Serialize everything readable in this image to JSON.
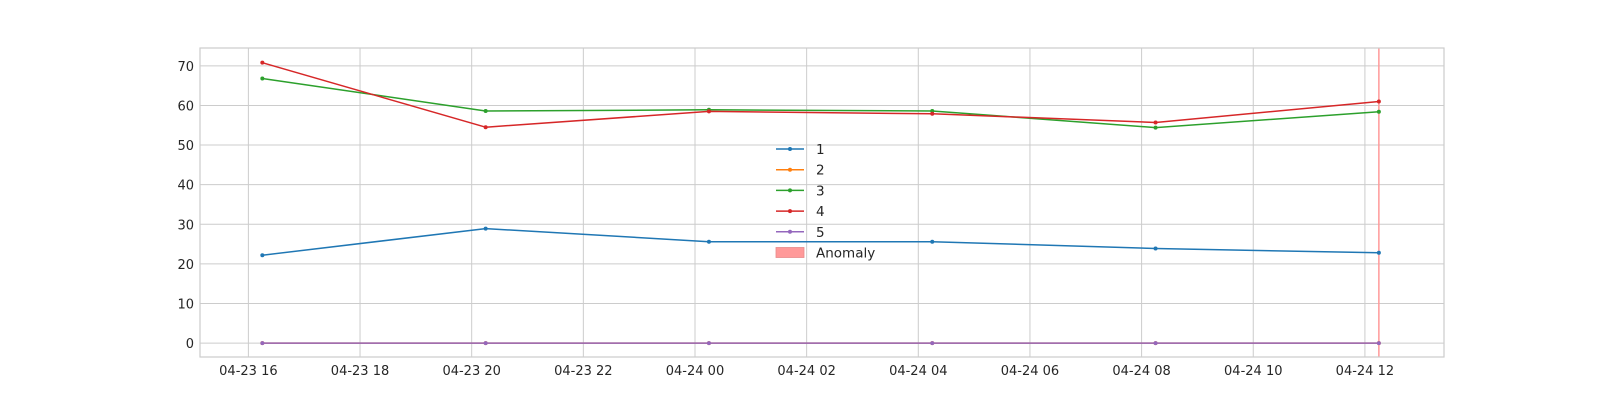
{
  "chart_data": {
    "type": "line",
    "title": "",
    "xlabel": "",
    "ylabel": "",
    "x": [
      "2023-04-23 16:15",
      "2023-04-23 20:15",
      "2023-04-24 00:15",
      "2023-04-24 04:15",
      "2023-04-24 08:15",
      "2023-04-24 12:15"
    ],
    "series": [
      {
        "name": "1",
        "color": "#1f77b4",
        "values": [
          22.2,
          28.9,
          25.6,
          25.6,
          23.9,
          22.8
        ]
      },
      {
        "name": "2",
        "color": "#ff7f0e",
        "values": [
          0,
          0,
          0,
          0,
          0,
          0
        ]
      },
      {
        "name": "3",
        "color": "#2ca02c",
        "values": [
          66.8,
          58.6,
          58.9,
          58.6,
          54.4,
          58.4
        ]
      },
      {
        "name": "4",
        "color": "#d62728",
        "values": [
          70.8,
          54.5,
          58.5,
          57.9,
          55.7,
          61.0
        ]
      },
      {
        "name": "5",
        "color": "#9467bd",
        "values": [
          0,
          0,
          0,
          0,
          0,
          0
        ]
      }
    ],
    "anomaly": {
      "label": "Anomaly",
      "color": "#ff9999",
      "at": "2023-04-24 12:15"
    },
    "ylim": [
      -3.5,
      74.5
    ],
    "xlim": [
      "2023-04-23 15:08",
      "2023-04-24 13:25"
    ],
    "yticks": [
      0,
      10,
      20,
      30,
      40,
      50,
      60,
      70
    ],
    "xticks": [
      {
        "t": "2023-04-23 16:00",
        "label": "04-23 16"
      },
      {
        "t": "2023-04-23 18:00",
        "label": "04-23 18"
      },
      {
        "t": "2023-04-23 20:00",
        "label": "04-23 20"
      },
      {
        "t": "2023-04-23 22:00",
        "label": "04-23 22"
      },
      {
        "t": "2023-04-24 00:00",
        "label": "04-24 00"
      },
      {
        "t": "2023-04-24 02:00",
        "label": "04-24 02"
      },
      {
        "t": "2023-04-24 04:00",
        "label": "04-24 04"
      },
      {
        "t": "2023-04-24 06:00",
        "label": "04-24 06"
      },
      {
        "t": "2023-04-24 08:00",
        "label": "04-24 08"
      },
      {
        "t": "2023-04-24 10:00",
        "label": "04-24 10"
      },
      {
        "t": "2023-04-24 12:00",
        "label": "04-24 12"
      }
    ],
    "grid": true,
    "legend_position": "center"
  }
}
